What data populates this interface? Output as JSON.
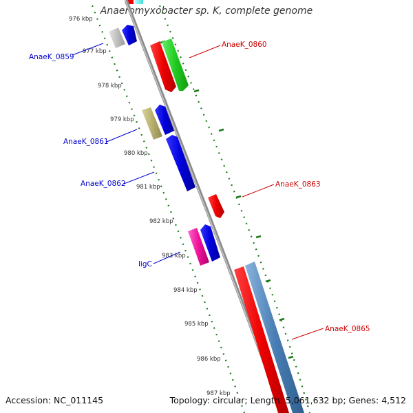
{
  "title": "Anaeromyxobacter sp. K, complete genome",
  "footer": {
    "accession": "Accession: NC_011145",
    "topology": "Topology: circular; Length: 5,061,632 bp; Genes: 4,512"
  },
  "colors": {
    "backbone": "#8c8c8c",
    "tick": "#1a7a1a",
    "label_reverse": "#0000cc",
    "label_forward": "#cc0000"
  },
  "kbp_labels": [
    "976 kbp",
    "977 kbp",
    "978 kbp",
    "979 kbp",
    "980 kbp",
    "981 kbp",
    "982 kbp",
    "983 kbp",
    "984 kbp",
    "985 kbp",
    "986 kbp",
    "987 kbp"
  ],
  "genes": [
    {
      "name": "AnaeK_0859",
      "strand": "reverse",
      "color": "#0000dd"
    },
    {
      "name": "AnaeK_0860",
      "strand": "forward",
      "color": "#ee0000"
    },
    {
      "name": "AnaeK_0861",
      "strand": "reverse",
      "color": "#0000dd"
    },
    {
      "name": "AnaeK_0862",
      "strand": "reverse",
      "color": "#0000dd"
    },
    {
      "name": "AnaeK_0863",
      "strand": "forward",
      "color": "#ee0000"
    },
    {
      "name": "ligC",
      "strand": "reverse",
      "color": "#0000dd"
    },
    {
      "name": "AnaeK_0865",
      "strand": "forward",
      "color": "#ee0000"
    }
  ]
}
